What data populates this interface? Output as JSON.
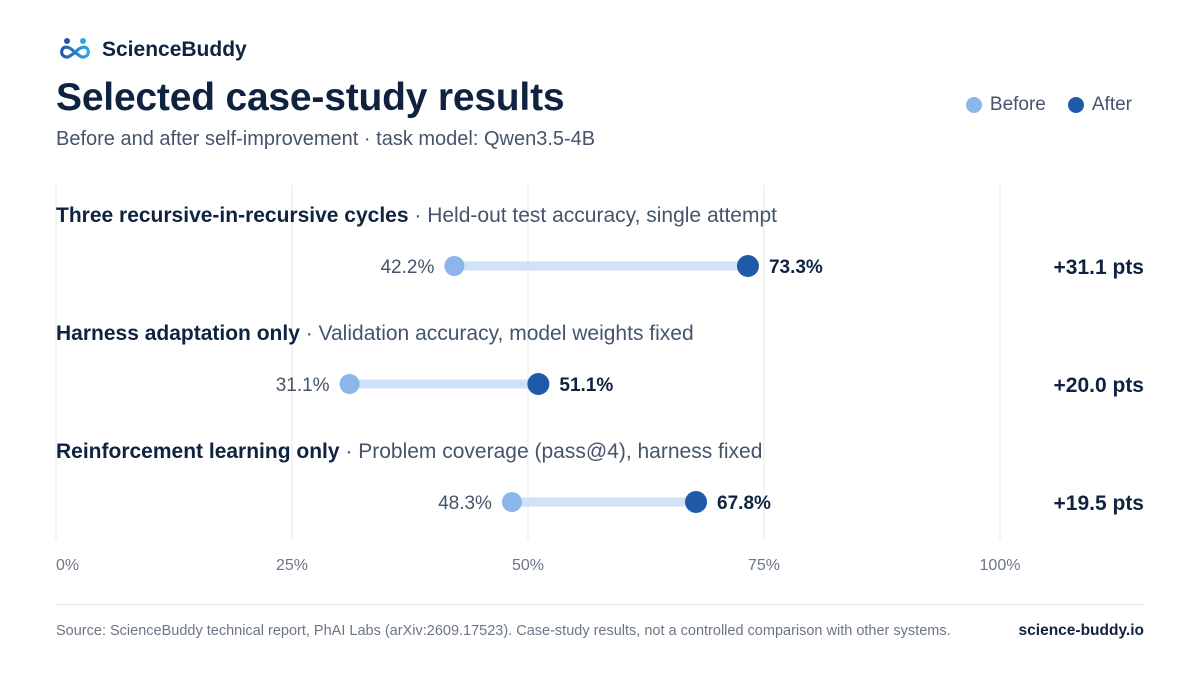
{
  "brand": {
    "name": "ScienceBuddy",
    "logo_icon": "infinity-people-icon"
  },
  "header": {
    "title": "Selected case-study results",
    "subtitle": "Before and after self-improvement · task model: Qwen3.5-4B"
  },
  "legend": {
    "before_label": "Before",
    "after_label": "After"
  },
  "colors": {
    "before": "#8ab6ea",
    "after": "#1f5aa8",
    "connector": "#cfe2f6",
    "grid": "#e4e7eb",
    "text_dark": "#0f2340",
    "text_muted": "#44556b",
    "tick": "#6b7685"
  },
  "chart_data": {
    "type": "dumbbell",
    "xlim": [
      0,
      100
    ],
    "x_ticks": [
      0,
      25,
      50,
      75,
      100
    ],
    "x_tick_labels": [
      "0%",
      "25%",
      "50%",
      "75%",
      "100%"
    ],
    "grid": true,
    "legend_position": "top-right",
    "series": [
      {
        "name": "Before"
      },
      {
        "name": "After"
      }
    ],
    "rows": [
      {
        "name": "Three recursive-in-recursive cycles",
        "description": "Held-out test accuracy, single attempt",
        "before": 42.2,
        "after": 73.3,
        "before_label": "42.2%",
        "after_label": "73.3%",
        "delta_label": "+31.1 pts"
      },
      {
        "name": "Harness adaptation only",
        "description": "Validation accuracy, model weights fixed",
        "before": 31.1,
        "after": 51.1,
        "before_label": "31.1%",
        "after_label": "51.1%",
        "delta_label": "+20.0 pts"
      },
      {
        "name": "Reinforcement learning only",
        "description": "Problem coverage (pass@4), harness fixed",
        "before": 48.3,
        "after": 67.8,
        "before_label": "48.3%",
        "after_label": "67.8%",
        "delta_label": "+19.5 pts"
      }
    ]
  },
  "footer": {
    "source": "Source: ScienceBuddy technical report, PhAI Labs (arXiv:2609.17523). Case-study results, not a controlled comparison with other systems.",
    "site": "science-buddy.io"
  }
}
